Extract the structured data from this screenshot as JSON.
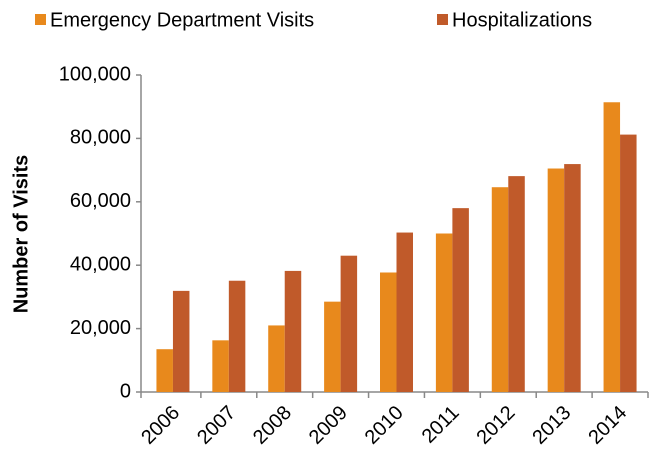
{
  "chart_data": {
    "type": "bar",
    "y_label": "Number of Visits",
    "categories": [
      "2006",
      "2007",
      "2008",
      "2009",
      "2010",
      "2011",
      "2012",
      "2013",
      "2014"
    ],
    "series": [
      {
        "name": "Emergency Department Visits",
        "color": "#e8891c",
        "values": [
          13500,
          16300,
          21000,
          28500,
          37700,
          50000,
          64600,
          70500,
          91400
        ]
      },
      {
        "name": "Hospitalizations",
        "color": "#c05a2a",
        "values": [
          31900,
          35100,
          38200,
          43000,
          50300,
          58000,
          68100,
          71900,
          81200
        ]
      }
    ],
    "ylim": [
      0,
      100000
    ],
    "yticks": [
      0,
      {
        "value": 20000,
        "label": "20,000"
      },
      {
        "value": 40000,
        "label": "40,000"
      },
      {
        "value": 60000,
        "label": "60,000"
      },
      {
        "value": 80000,
        "label": "80,000"
      },
      {
        "value": 100000,
        "label": "100,000"
      }
    ],
    "grid": false,
    "legend": "top"
  }
}
